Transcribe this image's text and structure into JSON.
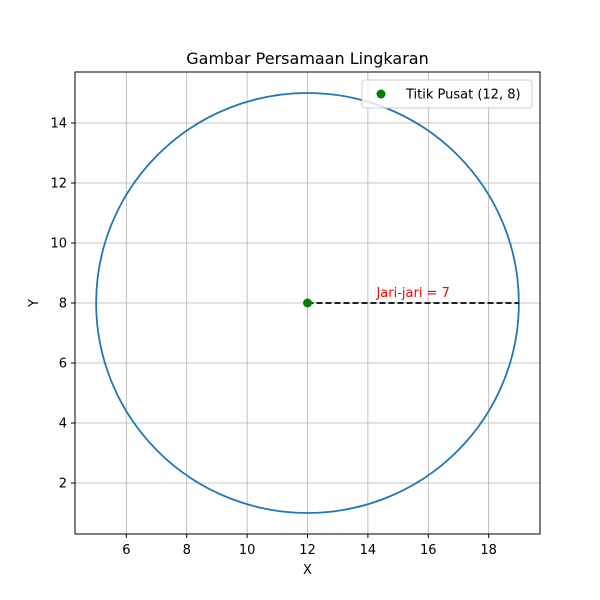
{
  "chart_data": {
    "type": "scatter",
    "title": "Gambar Persamaan Lingkaran",
    "xlabel": "X",
    "ylabel": "Y",
    "xlim": [
      4.3,
      19.7
    ],
    "ylim": [
      0.3,
      15.7
    ],
    "xticks": [
      6,
      8,
      10,
      12,
      14,
      16,
      18
    ],
    "yticks": [
      2,
      4,
      6,
      8,
      10,
      12,
      14
    ],
    "grid": true,
    "legend_position": "top-right",
    "circle": {
      "center": [
        12,
        8
      ],
      "radius": 7,
      "color": "#1f77b4"
    },
    "center_point": {
      "x": 12,
      "y": 8,
      "color": "#008000",
      "label": "Titik Pusat (12, 8)"
    },
    "radius_line": {
      "from": [
        12,
        8
      ],
      "to": [
        19,
        8
      ],
      "style": "dashed",
      "color": "#000000"
    },
    "annotation": {
      "text": "Jari-jari = 7",
      "x": 15.5,
      "y": 8.2,
      "color": "#ff0000"
    }
  }
}
